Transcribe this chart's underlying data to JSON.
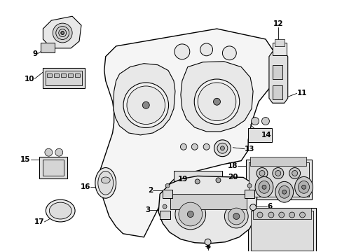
{
  "background_color": "#ffffff",
  "line_color": "#000000",
  "label_color": "#000000"
}
